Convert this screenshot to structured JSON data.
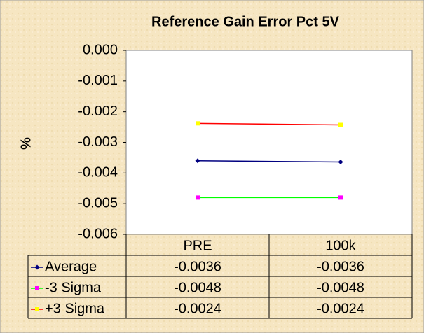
{
  "chart_data": {
    "type": "line",
    "title": "Reference Gain Error Pct 5V",
    "y_label": "%",
    "categories": [
      "PRE",
      "100k"
    ],
    "series": [
      {
        "name": "Average",
        "color": "#000080",
        "marker_color": "#000080",
        "marker": "diamond",
        "values": [
          -0.0036,
          -0.00364
        ],
        "value_labels": [
          "-0.0036",
          "-0.0036"
        ]
      },
      {
        "name": "-3 Sigma",
        "color": "#00ff00",
        "marker_color": "#ff00ff",
        "marker": "square",
        "values": [
          -0.0048,
          -0.0048
        ],
        "value_labels": [
          "-0.0048",
          "-0.0048"
        ]
      },
      {
        "name": "+3 Sigma",
        "color": "#ff0000",
        "marker_color": "#ffff00",
        "marker": "square",
        "values": [
          -0.00238,
          -0.00243
        ],
        "value_labels": [
          "-0.0024",
          "-0.0024"
        ]
      }
    ],
    "ylim": [
      -0.006,
      0
    ],
    "yticks": [
      {
        "value": 0,
        "label": "0.000"
      },
      -0.001,
      -0.002,
      -0.003,
      -0.004,
      -0.005,
      -0.006
    ],
    "data_table": true
  }
}
